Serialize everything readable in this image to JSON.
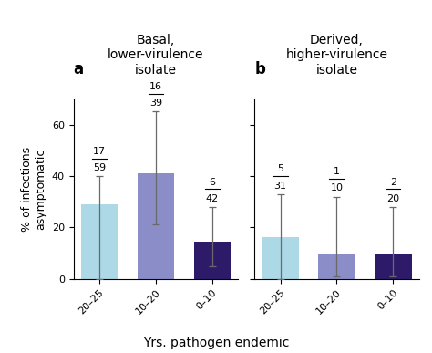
{
  "chart_data": [
    {
      "type": "bar",
      "panel_label": "a",
      "title": "Basal,\nlower-virulence\nisolate",
      "categories": [
        "20–25",
        "10–20",
        "0–10"
      ],
      "values": [
        28.81,
        41.03,
        14.29
      ],
      "error_low": [
        28.81,
        20.0,
        9.29
      ],
      "error_high": [
        11.19,
        24.0,
        13.71
      ],
      "numerators": [
        17,
        16,
        6
      ],
      "denominators": [
        59,
        39,
        42
      ],
      "colors": [
        "#add8e6",
        "#8b8dc8",
        "#2d1b69"
      ],
      "y_label": "% of infections\nasymptomatic",
      "ylim": [
        0,
        70
      ],
      "yticks": [
        0,
        20,
        40,
        60
      ]
    },
    {
      "type": "bar",
      "panel_label": "b",
      "title": "Derived,\nhigher-virulence\nisolate",
      "categories": [
        "20–25",
        "10–20",
        "0–10"
      ],
      "values": [
        16.13,
        10.0,
        10.0
      ],
      "error_low": [
        16.13,
        9.0,
        9.0
      ],
      "error_high": [
        16.87,
        22.0,
        18.0
      ],
      "numerators": [
        5,
        1,
        2
      ],
      "denominators": [
        31,
        10,
        20
      ],
      "colors": [
        "#add8e6",
        "#8b8dc8",
        "#2d1b69"
      ],
      "ylim": [
        0,
        70
      ],
      "yticks": [
        0,
        20,
        40,
        60
      ],
      "tick_labels": "x"
    }
  ],
  "x_label": "Yrs. pathogen endemic"
}
